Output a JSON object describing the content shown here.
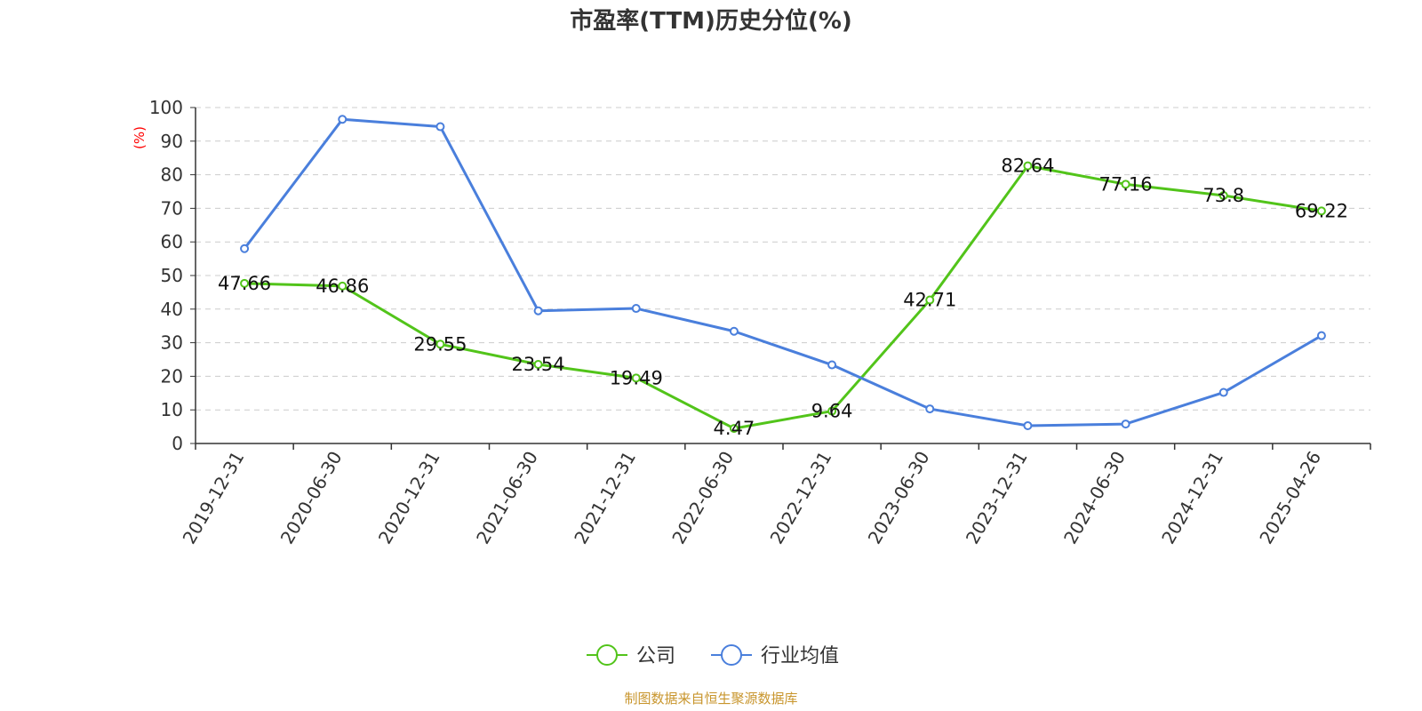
{
  "chart_data": {
    "type": "line",
    "title": "市盈率(TTM)历史分位(%)",
    "ylabel": "(%)",
    "ylim": [
      0,
      100
    ],
    "yticks": [
      0,
      10,
      20,
      30,
      40,
      50,
      60,
      70,
      80,
      90,
      100
    ],
    "grid": true,
    "legend_position": "bottom",
    "categories": [
      "2019-12-31",
      "2020-06-30",
      "2020-12-31",
      "2021-06-30",
      "2021-12-31",
      "2022-06-30",
      "2022-12-31",
      "2023-06-30",
      "2023-12-31",
      "2024-06-30",
      "2024-12-31",
      "2025-04-26"
    ],
    "series": [
      {
        "name": "公司",
        "color": "#52c41a",
        "values": [
          47.66,
          46.86,
          29.55,
          23.54,
          19.49,
          4.47,
          9.64,
          42.71,
          82.64,
          77.16,
          73.8,
          69.22
        ],
        "labels": [
          "47.66",
          "46.86",
          "29.55",
          "23.54",
          "19.49",
          "4.47",
          "9.64",
          "42.71",
          "82.64",
          "77.16",
          "73.8",
          "69.22"
        ]
      },
      {
        "name": "行业均值",
        "color": "#4a7fdc",
        "values": [
          58.0,
          96.5,
          94.3,
          39.5,
          40.2,
          33.4,
          23.4,
          10.3,
          5.3,
          5.8,
          15.2,
          32.1
        ]
      }
    ],
    "source": "制图数据来自恒生聚源数据库"
  }
}
